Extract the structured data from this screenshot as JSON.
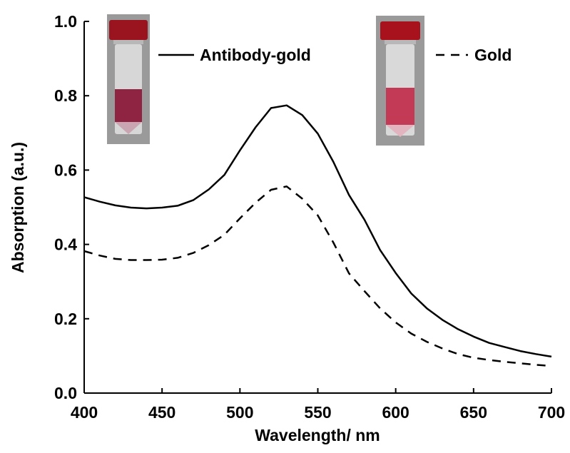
{
  "chart_data": {
    "type": "line",
    "title": "",
    "xlabel": "Wavelength/ nm",
    "ylabel": "Absorption (a.u.)",
    "xlim": [
      400,
      700
    ],
    "ylim": [
      0.0,
      1.0
    ],
    "xticks": [
      "400",
      "450",
      "500",
      "550",
      "600",
      "650",
      "700"
    ],
    "yticks": [
      "0.0",
      "0.2",
      "0.4",
      "0.6",
      "0.8",
      "1.0"
    ],
    "grid": false,
    "legend": "top, inline with vial photos",
    "series": [
      {
        "name": "Antibody-gold",
        "style": "solid",
        "x": [
          400,
          410,
          420,
          430,
          440,
          450,
          460,
          470,
          480,
          490,
          500,
          510,
          520,
          530,
          540,
          550,
          560,
          570,
          580,
          590,
          600,
          610,
          620,
          630,
          640,
          650,
          660,
          670,
          680,
          690,
          700
        ],
        "y": [
          0.527,
          0.515,
          0.505,
          0.499,
          0.497,
          0.499,
          0.504,
          0.519,
          0.548,
          0.587,
          0.653,
          0.715,
          0.767,
          0.774,
          0.748,
          0.698,
          0.622,
          0.533,
          0.466,
          0.385,
          0.323,
          0.268,
          0.228,
          0.197,
          0.172,
          0.152,
          0.135,
          0.124,
          0.113,
          0.105,
          0.098
        ]
      },
      {
        "name": "Gold",
        "style": "dashed",
        "x": [
          400,
          410,
          420,
          430,
          440,
          450,
          460,
          470,
          480,
          490,
          500,
          510,
          520,
          530,
          540,
          550,
          560,
          570,
          580,
          590,
          600,
          610,
          620,
          630,
          640,
          650,
          660,
          670,
          680,
          690,
          700
        ],
        "y": [
          0.382,
          0.37,
          0.361,
          0.358,
          0.358,
          0.359,
          0.364,
          0.377,
          0.398,
          0.426,
          0.47,
          0.512,
          0.547,
          0.556,
          0.523,
          0.478,
          0.405,
          0.322,
          0.274,
          0.228,
          0.19,
          0.16,
          0.138,
          0.12,
          0.105,
          0.095,
          0.089,
          0.084,
          0.08,
          0.076,
          0.073
        ]
      }
    ]
  },
  "insets": [
    {
      "name": "antibody-gold-vial",
      "cap_color": "#9a1420",
      "liquid_color": "#8e2342",
      "caption_series": 0
    },
    {
      "name": "gold-vial",
      "cap_color": "#a8121c",
      "liquid_color": "#c23a55",
      "caption_series": 1
    }
  ]
}
